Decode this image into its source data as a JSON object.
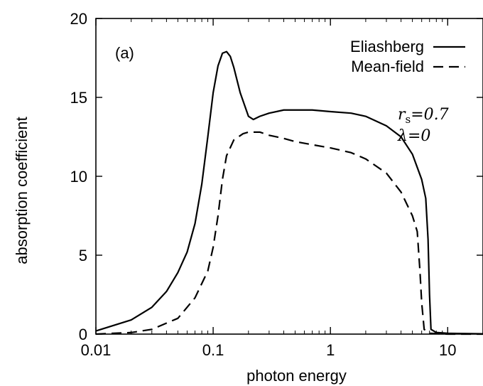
{
  "chart_data": {
    "type": "line",
    "panel_label": "(a)",
    "xlabel": "photon energy",
    "ylabel": "absorption coefficient",
    "xscale": "log",
    "xlim": [
      0.01,
      20
    ],
    "ylim": [
      0,
      20
    ],
    "x_ticks": [
      0.01,
      0.1,
      1,
      10
    ],
    "x_tick_labels": [
      "0.01",
      "0.1",
      "1",
      "10"
    ],
    "y_ticks": [
      0,
      5,
      10,
      15,
      20
    ],
    "y_tick_labels": [
      "0",
      "5",
      "10",
      "15",
      "20"
    ],
    "legend_placement": "top-right",
    "annotation": {
      "rs_symbol": "r",
      "rs_subscript": "s",
      "rs_value": "=0.7",
      "lambda_text": "λ=0"
    },
    "series": [
      {
        "name": "Eliashberg",
        "style": "solid",
        "color": "#000000",
        "x": [
          0.01,
          0.02,
          0.03,
          0.04,
          0.05,
          0.06,
          0.07,
          0.08,
          0.09,
          0.1,
          0.11,
          0.12,
          0.13,
          0.14,
          0.15,
          0.17,
          0.2,
          0.22,
          0.25,
          0.3,
          0.4,
          0.5,
          0.7,
          1,
          1.5,
          2,
          3,
          4,
          5,
          6,
          6.5,
          6.8,
          7,
          7.2,
          8,
          10,
          20
        ],
        "y": [
          0.2,
          0.9,
          1.7,
          2.7,
          3.9,
          5.2,
          7.0,
          9.5,
          12.5,
          15.3,
          17.0,
          17.8,
          17.9,
          17.6,
          16.9,
          15.3,
          13.8,
          13.6,
          13.8,
          14.0,
          14.2,
          14.2,
          14.2,
          14.1,
          14.0,
          13.8,
          13.2,
          12.5,
          11.4,
          9.8,
          8.6,
          6.0,
          2.5,
          0.3,
          0.1,
          0.05,
          0.02
        ]
      },
      {
        "name": "Mean-field",
        "style": "dashed",
        "color": "#000000",
        "x": [
          0.01,
          0.02,
          0.03,
          0.05,
          0.07,
          0.09,
          0.1,
          0.11,
          0.12,
          0.13,
          0.15,
          0.18,
          0.2,
          0.25,
          0.3,
          0.4,
          0.5,
          0.7,
          1,
          1.5,
          2,
          3,
          4,
          5,
          5.5,
          5.8,
          6,
          6.3,
          7,
          10,
          20
        ],
        "y": [
          0.0,
          0.1,
          0.3,
          1.0,
          2.3,
          4.0,
          5.5,
          7.5,
          9.8,
          11.3,
          12.3,
          12.7,
          12.8,
          12.8,
          12.6,
          12.4,
          12.2,
          12.0,
          11.8,
          11.5,
          11.1,
          10.2,
          9.0,
          7.5,
          6.5,
          4.0,
          2.0,
          0.3,
          0.05,
          0.0,
          0.0
        ]
      }
    ]
  }
}
